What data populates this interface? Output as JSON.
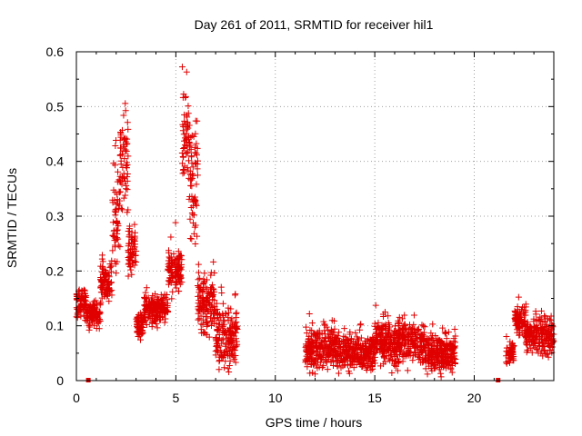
{
  "chart_data": {
    "type": "scatter",
    "title": "Day 261 of 2011, SRMTID for receiver hil1",
    "xlabel": "GPS time / hours",
    "ylabel": "SRMTID / TECUs",
    "xlim": [
      0,
      24
    ],
    "ylim": [
      0,
      0.6
    ],
    "xticks": [
      "0",
      "5",
      "10",
      "15",
      "20"
    ],
    "yticks": [
      "0",
      "0.1",
      "0.2",
      "0.3",
      "0.4",
      "0.5",
      "0.6"
    ],
    "grid": true,
    "marker": "plus",
    "color": "#e00000",
    "gap_markers_x": [
      0.6,
      21.2
    ],
    "series": [
      {
        "name": "SRMTID",
        "segments": [
          {
            "x_start": 0.0,
            "x_end": 0.5,
            "level": 0.14,
            "spread": 0.04
          },
          {
            "x_start": 0.5,
            "x_end": 1.2,
            "level": 0.12,
            "spread": 0.03
          },
          {
            "x_start": 1.2,
            "x_end": 1.8,
            "level": 0.18,
            "spread": 0.05
          },
          {
            "x_start": 1.8,
            "x_end": 2.2,
            "level": 0.3,
            "spread": 0.12
          },
          {
            "x_start": 2.2,
            "x_end": 2.6,
            "level": 0.4,
            "spread": 0.14
          },
          {
            "x_start": 2.6,
            "x_end": 3.0,
            "level": 0.24,
            "spread": 0.06
          },
          {
            "x_start": 3.0,
            "x_end": 3.4,
            "level": 0.1,
            "spread": 0.04
          },
          {
            "x_start": 3.4,
            "x_end": 4.6,
            "level": 0.13,
            "spread": 0.04
          },
          {
            "x_start": 4.6,
            "x_end": 5.3,
            "level": 0.2,
            "spread": 0.06
          },
          {
            "x_start": 5.3,
            "x_end": 5.7,
            "level": 0.45,
            "spread": 0.14
          },
          {
            "x_start": 5.7,
            "x_end": 6.1,
            "level": 0.36,
            "spread": 0.16
          },
          {
            "x_start": 6.1,
            "x_end": 7.0,
            "level": 0.14,
            "spread": 0.08
          },
          {
            "x_start": 7.0,
            "x_end": 8.1,
            "level": 0.08,
            "spread": 0.08
          },
          {
            "x_start": 11.5,
            "x_end": 13.0,
            "level": 0.06,
            "spread": 0.06
          },
          {
            "x_start": 13.0,
            "x_end": 15.0,
            "level": 0.05,
            "spread": 0.05
          },
          {
            "x_start": 15.0,
            "x_end": 17.5,
            "level": 0.07,
            "spread": 0.06
          },
          {
            "x_start": 17.5,
            "x_end": 19.1,
            "level": 0.05,
            "spread": 0.05
          },
          {
            "x_start": 21.6,
            "x_end": 22.0,
            "level": 0.05,
            "spread": 0.03
          },
          {
            "x_start": 22.0,
            "x_end": 22.6,
            "level": 0.11,
            "spread": 0.04
          },
          {
            "x_start": 22.6,
            "x_end": 24.0,
            "level": 0.08,
            "spread": 0.05
          }
        ]
      }
    ]
  }
}
